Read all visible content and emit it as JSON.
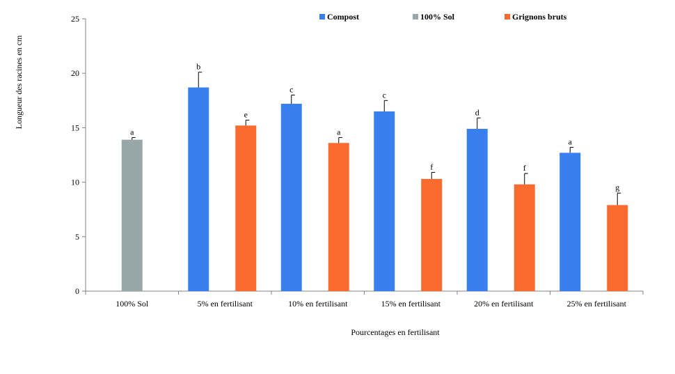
{
  "chart_data": {
    "type": "bar",
    "title": "",
    "xlabel": "Pourcentages en fertilisant",
    "ylabel": "Longueur des racines en cm",
    "ylim": [
      0,
      25
    ],
    "yticks": [
      0,
      5,
      10,
      15,
      20,
      25
    ],
    "grid": false,
    "legend_position": "top",
    "categories": [
      "100% Sol",
      "5% en fertilisant",
      "10% en fertilisant",
      "15% en fertilisant",
      "20% en fertilisant",
      "25% en fertilisant"
    ],
    "series": [
      {
        "name": "Compost",
        "color": "#3a7ff0",
        "values": [
          null,
          18.7,
          17.2,
          16.5,
          14.9,
          12.7
        ],
        "errors": [
          null,
          1.4,
          0.8,
          1.0,
          1.0,
          0.5
        ],
        "letters": [
          null,
          "b",
          "c",
          "c",
          "d",
          "a"
        ]
      },
      {
        "name": "100% Sol",
        "color": "#98a8a8",
        "values": [
          13.9,
          null,
          null,
          null,
          null,
          null
        ],
        "errors": [
          0.2,
          null,
          null,
          null,
          null,
          null
        ],
        "letters": [
          "a",
          null,
          null,
          null,
          null,
          null
        ]
      },
      {
        "name": "Grignons bruts",
        "color": "#fb6a2e",
        "values": [
          null,
          15.2,
          13.6,
          10.3,
          9.8,
          7.9
        ],
        "errors": [
          null,
          0.5,
          0.5,
          0.6,
          1.0,
          1.1
        ],
        "letters": [
          null,
          "e",
          "a",
          "f",
          "f",
          "g"
        ]
      }
    ]
  }
}
